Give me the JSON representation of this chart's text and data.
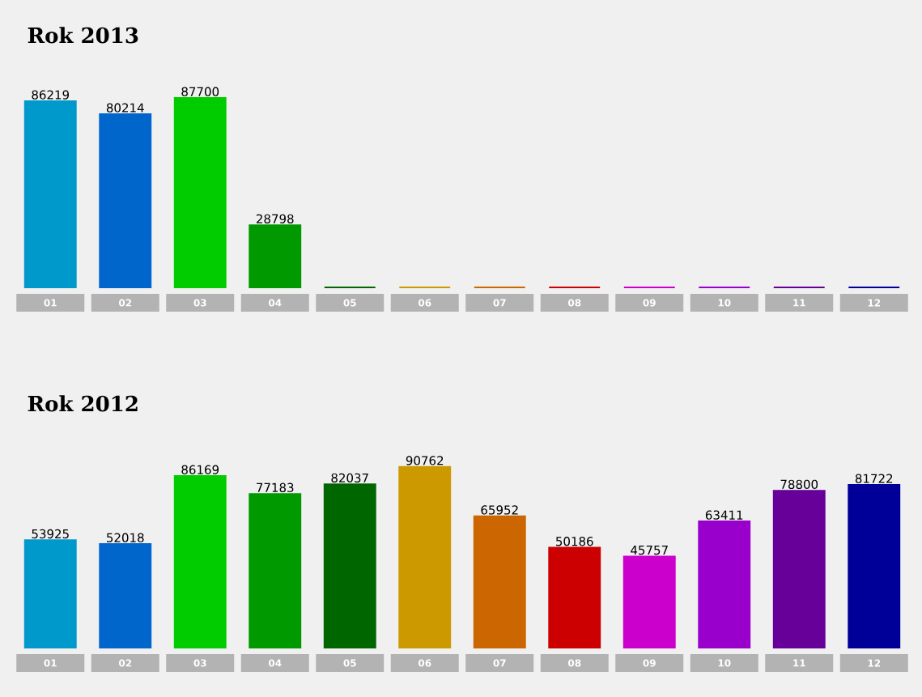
{
  "chart_data": [
    {
      "type": "bar",
      "title": "Rok 2013",
      "categories": [
        "01",
        "02",
        "03",
        "04",
        "05",
        "06",
        "07",
        "08",
        "09",
        "10",
        "11",
        "12"
      ],
      "values": [
        86219,
        80214,
        87700,
        28798,
        0,
        0,
        0,
        0,
        0,
        0,
        0,
        0
      ],
      "value_labels": [
        "86219",
        "80214",
        "87700",
        "28798",
        null,
        null,
        null,
        null,
        null,
        null,
        null,
        null
      ],
      "colors": [
        "#0099cc",
        "#0066cc",
        "#00cc00",
        "#009900",
        "#006600",
        "#cc9900",
        "#cc6600",
        "#cc0000",
        "#cc00cc",
        "#9900cc",
        "#660099",
        "#000099"
      ],
      "tick_labels": "x"
    },
    {
      "type": "bar",
      "title": "Rok 2012",
      "categories": [
        "01",
        "02",
        "03",
        "04",
        "05",
        "06",
        "07",
        "08",
        "09",
        "10",
        "11",
        "12"
      ],
      "values": [
        53925,
        52018,
        86169,
        77183,
        82037,
        90762,
        65952,
        50186,
        45757,
        63411,
        78800,
        81722
      ],
      "data_labels": true,
      "colors": [
        "#0099cc",
        "#0066cc",
        "#00cc00",
        "#009900",
        "#006600",
        "#cc9900",
        "#cc6600",
        "#cc0000",
        "#cc00cc",
        "#9900cc",
        "#660099",
        "#000099"
      ],
      "tick_labels": "x"
    }
  ]
}
